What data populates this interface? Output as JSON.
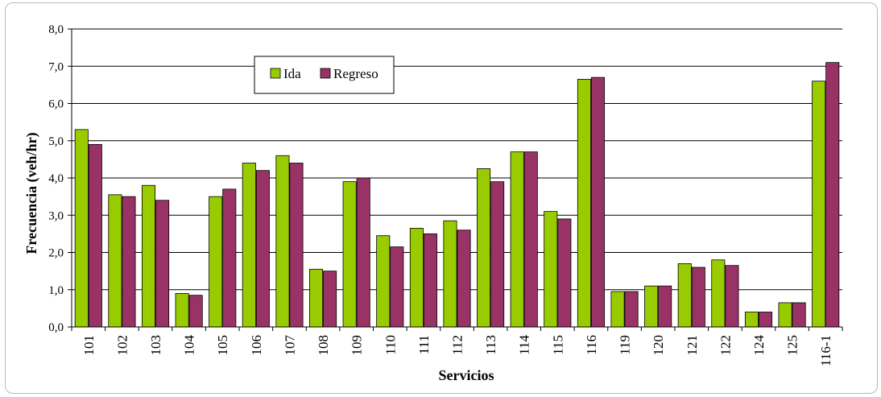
{
  "chart_data": {
    "type": "bar",
    "xlabel": "Servicios",
    "ylabel": "Frecuencia (veh/hr)",
    "ylim": [
      0,
      8
    ],
    "yticks": [
      "0,0",
      "1,0",
      "2,0",
      "3,0",
      "4,0",
      "5,0",
      "6,0",
      "7,0",
      "8,0"
    ],
    "grid": true,
    "legend_position": "top-center",
    "categories": [
      "101",
      "102",
      "103",
      "104",
      "105",
      "106",
      "107",
      "108",
      "109",
      "110",
      "111",
      "112",
      "113",
      "114",
      "115",
      "116",
      "119",
      "120",
      "121",
      "122",
      "124",
      "125",
      "116-1"
    ],
    "series": [
      {
        "name": "Ida",
        "color": "#99cc00",
        "values": [
          5.3,
          3.55,
          3.8,
          0.9,
          3.5,
          4.4,
          4.6,
          1.55,
          3.9,
          2.45,
          2.65,
          2.85,
          4.25,
          4.7,
          3.1,
          6.65,
          0.95,
          1.1,
          1.7,
          1.8,
          0.4,
          0.65,
          6.6
        ]
      },
      {
        "name": "Regreso",
        "color": "#993366",
        "values": [
          4.9,
          3.5,
          3.4,
          0.85,
          3.7,
          4.2,
          4.4,
          1.5,
          4.0,
          2.15,
          2.5,
          2.6,
          3.9,
          4.7,
          2.9,
          6.7,
          0.95,
          1.1,
          1.6,
          1.65,
          0.4,
          0.65,
          7.1
        ]
      }
    ]
  }
}
